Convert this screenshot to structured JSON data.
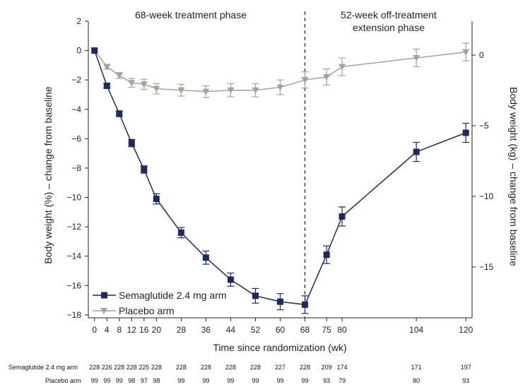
{
  "chart_data": {
    "type": "line",
    "xlabel": "Time since randomization (wk)",
    "ylabel": "Body weight (%) – change from baseline",
    "y2label": "Body weight (kg) – change from baseline",
    "xlim": [
      -2,
      122
    ],
    "ylim": [
      -18.2,
      2
    ],
    "y2lim": [
      -18.6,
      2.4
    ],
    "x_ticks": [
      0,
      4,
      8,
      12,
      16,
      20,
      28,
      36,
      44,
      52,
      60,
      68,
      75,
      80,
      104,
      120
    ],
    "y_ticks": [
      2,
      0,
      -2,
      -4,
      -6,
      -8,
      -10,
      -12,
      -14,
      -16,
      -18
    ],
    "y2_ticks": [
      0,
      -5,
      -10,
      -15
    ],
    "divider_x": 68,
    "phases": [
      "68-week treatment phase",
      "52-week off-treatment\nextension phase"
    ],
    "series": [
      {
        "name": "Semaglutide 2.4 mg arm",
        "color": "#1b2a66",
        "marker": "square",
        "x": [
          0,
          4,
          8,
          12,
          16,
          20,
          28,
          36,
          44,
          52,
          60,
          68,
          75,
          80,
          104,
          120
        ],
        "y": [
          0,
          -2.4,
          -4.3,
          -6.3,
          -8.1,
          -10.1,
          -12.4,
          -14.1,
          -15.6,
          -16.7,
          -17.1,
          -17.3,
          -13.9,
          -11.3,
          -6.9,
          -5.6
        ],
        "err": [
          0,
          0.15,
          0.2,
          0.25,
          0.25,
          0.35,
          0.35,
          0.45,
          0.45,
          0.5,
          0.55,
          0.6,
          0.6,
          0.65,
          0.65,
          0.65
        ]
      },
      {
        "name": "Placebo arm",
        "color": "#a6a29b",
        "marker": "triangle-down",
        "x": [
          0,
          4,
          8,
          12,
          16,
          20,
          28,
          36,
          44,
          52,
          60,
          68,
          75,
          80,
          104,
          120
        ],
        "y": [
          0,
          -1.1,
          -1.7,
          -2.2,
          -2.3,
          -2.6,
          -2.7,
          -2.8,
          -2.7,
          -2.7,
          -2.5,
          -2.0,
          -1.8,
          -1.1,
          -0.5,
          -0.1
        ],
        "err": [
          0,
          0.15,
          0.2,
          0.3,
          0.35,
          0.35,
          0.4,
          0.4,
          0.45,
          0.45,
          0.5,
          0.55,
          0.55,
          0.6,
          0.6,
          0.6
        ]
      }
    ],
    "at_risk": {
      "x": [
        0,
        4,
        8,
        12,
        16,
        20,
        28,
        36,
        44,
        52,
        60,
        68,
        75,
        80,
        104,
        120
      ],
      "rows": [
        {
          "label": "Semaglutide 2.4 mg arm",
          "values": [
            "228",
            "226",
            "228",
            "228",
            "225",
            "228",
            "228",
            "228",
            "228",
            "228",
            "227",
            "228",
            "209",
            "174",
            "171",
            "197"
          ]
        },
        {
          "label": "Placebo arm",
          "values": [
            "99",
            "99",
            "99",
            "98",
            "97",
            "98",
            "99",
            "99",
            "99",
            "99",
            "99",
            "99",
            "93",
            "79",
            "80",
            "93"
          ]
        }
      ]
    }
  }
}
